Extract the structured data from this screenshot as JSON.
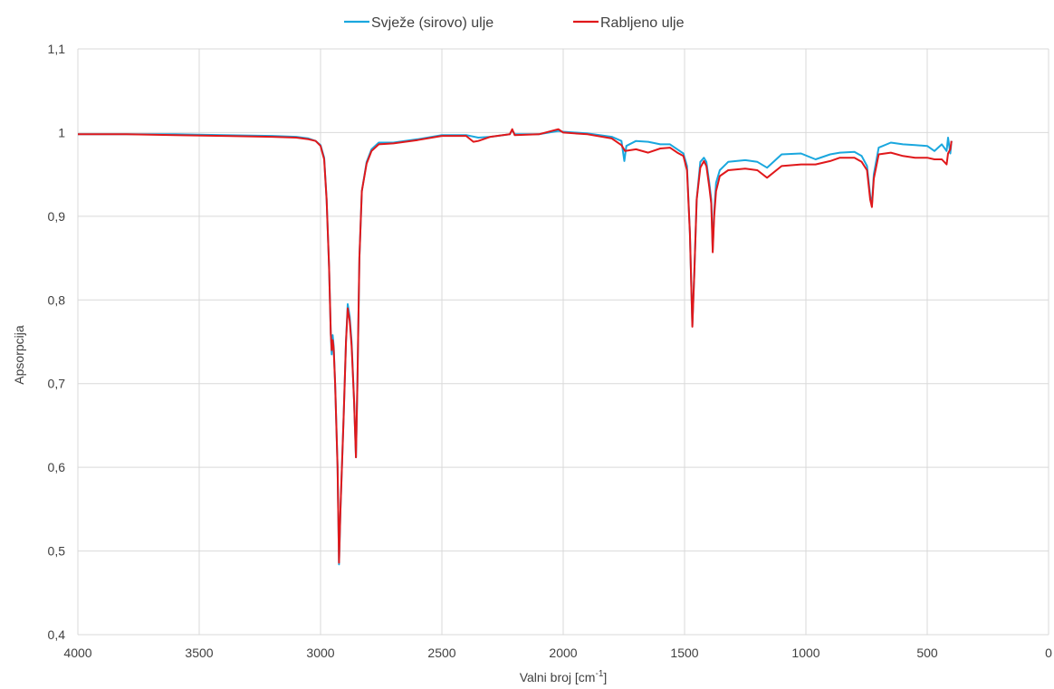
{
  "chart_data": {
    "type": "line",
    "title": "",
    "xlabel": "Valni broj [cm",
    "xlabel_sup": "-1",
    "xlabel_end": "]",
    "ylabel": "Apsorpcija",
    "xlim": [
      4000,
      0
    ],
    "ylim": [
      0.4,
      1.1
    ],
    "x_reversed": true,
    "grid": true,
    "legend_position": "top-center",
    "xticks": [
      4000,
      3500,
      3000,
      2500,
      2000,
      1500,
      1000,
      500,
      0
    ],
    "xtick_labels": [
      "4000",
      "3500",
      "3000",
      "2500",
      "2000",
      "1500",
      "1000",
      "500",
      "0"
    ],
    "yticks": [
      0.4,
      0.5,
      0.6,
      0.7,
      0.8,
      0.9,
      1.0,
      1.1
    ],
    "ytick_labels": [
      "0,4",
      "0,5",
      "0,6",
      "0,7",
      "0,8",
      "0,9",
      "1",
      "1,1"
    ],
    "series": [
      {
        "name": "Svježe (sirovo) ulje",
        "color": "#1aa7de",
        "points": [
          [
            4000,
            0.998
          ],
          [
            3800,
            0.998
          ],
          [
            3600,
            0.998
          ],
          [
            3400,
            0.997
          ],
          [
            3200,
            0.996
          ],
          [
            3100,
            0.995
          ],
          [
            3050,
            0.993
          ],
          [
            3020,
            0.99
          ],
          [
            3000,
            0.985
          ],
          [
            2985,
            0.97
          ],
          [
            2975,
            0.92
          ],
          [
            2965,
            0.84
          ],
          [
            2958,
            0.76
          ],
          [
            2954,
            0.735
          ],
          [
            2950,
            0.758
          ],
          [
            2946,
            0.745
          ],
          [
            2940,
            0.7
          ],
          [
            2930,
            0.6
          ],
          [
            2924,
            0.484
          ],
          [
            2918,
            0.55
          ],
          [
            2905,
            0.66
          ],
          [
            2895,
            0.75
          ],
          [
            2888,
            0.795
          ],
          [
            2880,
            0.78
          ],
          [
            2872,
            0.75
          ],
          [
            2862,
            0.68
          ],
          [
            2854,
            0.612
          ],
          [
            2848,
            0.7
          ],
          [
            2840,
            0.85
          ],
          [
            2830,
            0.93
          ],
          [
            2810,
            0.965
          ],
          [
            2790,
            0.98
          ],
          [
            2760,
            0.988
          ],
          [
            2700,
            0.988
          ],
          [
            2600,
            0.992
          ],
          [
            2500,
            0.997
          ],
          [
            2400,
            0.997
          ],
          [
            2350,
            0.994
          ],
          [
            2300,
            0.995
          ],
          [
            2220,
            0.998
          ],
          [
            2210,
            1.003
          ],
          [
            2200,
            0.998
          ],
          [
            2100,
            0.998
          ],
          [
            2020,
            1.002
          ],
          [
            2000,
            1.001
          ],
          [
            1900,
            0.999
          ],
          [
            1800,
            0.995
          ],
          [
            1760,
            0.99
          ],
          [
            1748,
            0.966
          ],
          [
            1740,
            0.984
          ],
          [
            1700,
            0.99
          ],
          [
            1650,
            0.989
          ],
          [
            1600,
            0.986
          ],
          [
            1560,
            0.986
          ],
          [
            1530,
            0.98
          ],
          [
            1505,
            0.975
          ],
          [
            1490,
            0.96
          ],
          [
            1478,
            0.88
          ],
          [
            1468,
            0.77
          ],
          [
            1460,
            0.83
          ],
          [
            1450,
            0.92
          ],
          [
            1435,
            0.965
          ],
          [
            1420,
            0.97
          ],
          [
            1410,
            0.965
          ],
          [
            1398,
            0.94
          ],
          [
            1390,
            0.92
          ],
          [
            1384,
            0.86
          ],
          [
            1378,
            0.905
          ],
          [
            1370,
            0.94
          ],
          [
            1355,
            0.955
          ],
          [
            1320,
            0.965
          ],
          [
            1250,
            0.967
          ],
          [
            1200,
            0.965
          ],
          [
            1160,
            0.958
          ],
          [
            1100,
            0.974
          ],
          [
            1020,
            0.975
          ],
          [
            960,
            0.968
          ],
          [
            900,
            0.974
          ],
          [
            860,
            0.976
          ],
          [
            800,
            0.977
          ],
          [
            770,
            0.972
          ],
          [
            748,
            0.96
          ],
          [
            735,
            0.925
          ],
          [
            728,
            0.913
          ],
          [
            720,
            0.95
          ],
          [
            700,
            0.982
          ],
          [
            650,
            0.988
          ],
          [
            600,
            0.986
          ],
          [
            550,
            0.985
          ],
          [
            500,
            0.984
          ],
          [
            470,
            0.978
          ],
          [
            440,
            0.986
          ],
          [
            420,
            0.978
          ],
          [
            414,
            0.994
          ],
          [
            405,
            0.975
          ],
          [
            400,
            0.99
          ]
        ]
      },
      {
        "name": "Rabljeno ulje",
        "color": "#e0181b",
        "points": [
          [
            4000,
            0.998
          ],
          [
            3800,
            0.998
          ],
          [
            3600,
            0.997
          ],
          [
            3400,
            0.996
          ],
          [
            3200,
            0.995
          ],
          [
            3100,
            0.994
          ],
          [
            3050,
            0.992
          ],
          [
            3020,
            0.99
          ],
          [
            3000,
            0.984
          ],
          [
            2985,
            0.968
          ],
          [
            2975,
            0.92
          ],
          [
            2965,
            0.84
          ],
          [
            2958,
            0.76
          ],
          [
            2954,
            0.74
          ],
          [
            2950,
            0.752
          ],
          [
            2946,
            0.742
          ],
          [
            2940,
            0.7
          ],
          [
            2930,
            0.6
          ],
          [
            2924,
            0.486
          ],
          [
            2918,
            0.55
          ],
          [
            2905,
            0.66
          ],
          [
            2895,
            0.75
          ],
          [
            2888,
            0.79
          ],
          [
            2880,
            0.775
          ],
          [
            2872,
            0.745
          ],
          [
            2862,
            0.68
          ],
          [
            2854,
            0.612
          ],
          [
            2848,
            0.7
          ],
          [
            2840,
            0.85
          ],
          [
            2830,
            0.93
          ],
          [
            2810,
            0.963
          ],
          [
            2790,
            0.978
          ],
          [
            2760,
            0.986
          ],
          [
            2700,
            0.987
          ],
          [
            2600,
            0.991
          ],
          [
            2500,
            0.996
          ],
          [
            2400,
            0.996
          ],
          [
            2370,
            0.989
          ],
          [
            2350,
            0.99
          ],
          [
            2300,
            0.995
          ],
          [
            2220,
            0.998
          ],
          [
            2210,
            1.004
          ],
          [
            2200,
            0.997
          ],
          [
            2100,
            0.998
          ],
          [
            2020,
            1.004
          ],
          [
            2000,
            1.0
          ],
          [
            1900,
            0.998
          ],
          [
            1800,
            0.993
          ],
          [
            1760,
            0.985
          ],
          [
            1745,
            0.978
          ],
          [
            1700,
            0.98
          ],
          [
            1650,
            0.976
          ],
          [
            1600,
            0.981
          ],
          [
            1560,
            0.982
          ],
          [
            1530,
            0.976
          ],
          [
            1505,
            0.972
          ],
          [
            1490,
            0.955
          ],
          [
            1478,
            0.88
          ],
          [
            1468,
            0.768
          ],
          [
            1460,
            0.83
          ],
          [
            1450,
            0.92
          ],
          [
            1435,
            0.958
          ],
          [
            1420,
            0.966
          ],
          [
            1410,
            0.96
          ],
          [
            1398,
            0.935
          ],
          [
            1390,
            0.915
          ],
          [
            1384,
            0.857
          ],
          [
            1378,
            0.9
          ],
          [
            1370,
            0.93
          ],
          [
            1355,
            0.948
          ],
          [
            1320,
            0.955
          ],
          [
            1250,
            0.957
          ],
          [
            1200,
            0.955
          ],
          [
            1160,
            0.946
          ],
          [
            1100,
            0.96
          ],
          [
            1020,
            0.962
          ],
          [
            960,
            0.962
          ],
          [
            900,
            0.966
          ],
          [
            860,
            0.97
          ],
          [
            800,
            0.97
          ],
          [
            770,
            0.965
          ],
          [
            748,
            0.955
          ],
          [
            735,
            0.92
          ],
          [
            728,
            0.911
          ],
          [
            720,
            0.945
          ],
          [
            700,
            0.974
          ],
          [
            650,
            0.976
          ],
          [
            600,
            0.972
          ],
          [
            550,
            0.97
          ],
          [
            500,
            0.97
          ],
          [
            470,
            0.968
          ],
          [
            440,
            0.968
          ],
          [
            420,
            0.962
          ],
          [
            414,
            0.975
          ],
          [
            405,
            0.98
          ],
          [
            400,
            0.99
          ]
        ]
      }
    ]
  }
}
